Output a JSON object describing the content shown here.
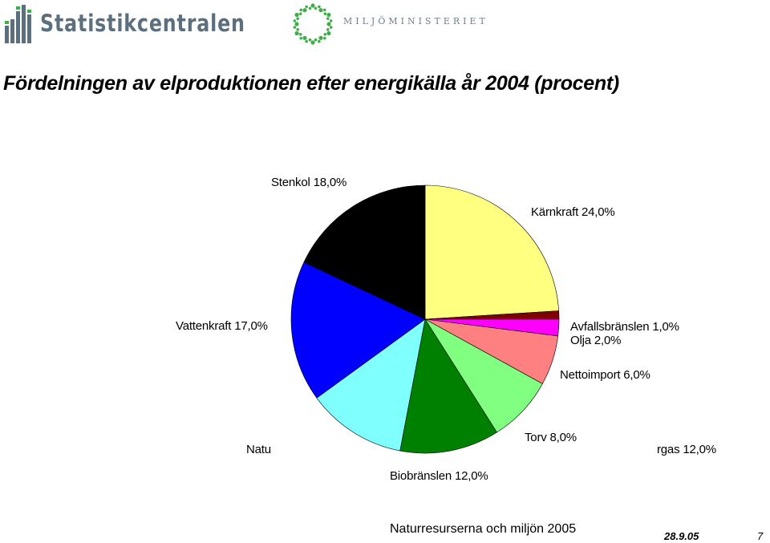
{
  "header": {
    "logo_left_name": "Statistikcentralen",
    "logo_right_name": "MILJÖMINISTERIET",
    "colors": {
      "logo_left": "#5b6f7e",
      "logo_right_green": "#3fae49"
    }
  },
  "chart_data": {
    "type": "pie",
    "title": "Fördelningen av elproduktionen efter energikälla år 2004 (procent)",
    "slices": [
      {
        "name": "Kärnkraft",
        "value": 24.0,
        "label": "Kärnkraft  24,0%",
        "color": "#ffff80"
      },
      {
        "name": "Avfallsbränslen",
        "value": 1.0,
        "label": "Avfallsbränslen  1,0%",
        "color": "#800000"
      },
      {
        "name": "Olja",
        "value": 2.0,
        "label": "Olja  2,0%",
        "color": "#ff00ff"
      },
      {
        "name": "Nettoimport",
        "value": 6.0,
        "label": "Nettoimport  6,0%",
        "color": "#ff8080"
      },
      {
        "name": "Torv",
        "value": 8.0,
        "label": "Torv  8,0%",
        "color": "#80ff80"
      },
      {
        "name": "Biobränslen",
        "value": 12.0,
        "label": "Biobränslen  12,0%",
        "color": "#008000"
      },
      {
        "name": "Naturgas",
        "value": 12.0,
        "label_left": "Natu",
        "label_right": "rgas  12,0%",
        "color": "#80ffff"
      },
      {
        "name": "Vattenkraft",
        "value": 17.0,
        "label": "Vattenkraft  17,0%",
        "color": "#0000ff"
      },
      {
        "name": "Stenkol",
        "value": 18.0,
        "label": "Stenkol  18,0%",
        "color": "#000000"
      }
    ]
  },
  "footer": {
    "text": "Naturresurserna och miljön 2005",
    "date": "28.9.05",
    "page": "7"
  }
}
